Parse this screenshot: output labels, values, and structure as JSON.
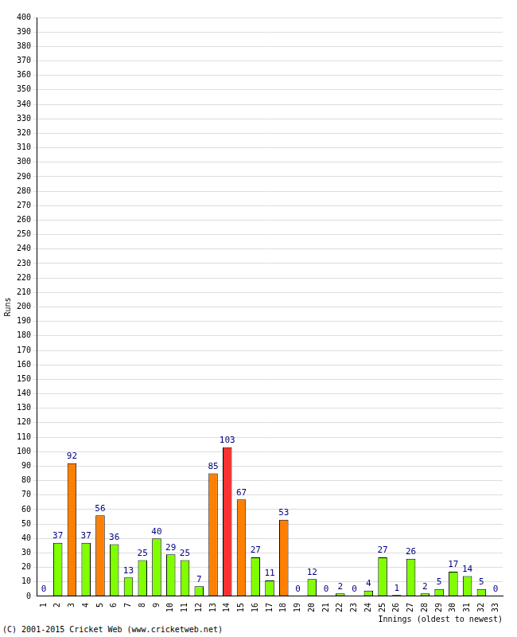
{
  "chart_data": {
    "type": "bar",
    "x_label": "Innings (oldest to newest)",
    "y_label": "Runs",
    "annotations": [
      "(C) 2001-2015 Cricket Web (www.cricketweb.net)"
    ],
    "categories": [
      "1",
      "2",
      "3",
      "4",
      "5",
      "6",
      "7",
      "8",
      "9",
      "10",
      "11",
      "12",
      "13",
      "14",
      "15",
      "16",
      "17",
      "18",
      "19",
      "20",
      "21",
      "22",
      "23",
      "24",
      "25",
      "26",
      "27",
      "28",
      "29",
      "30",
      "31",
      "32",
      "33"
    ],
    "values": [
      0,
      37,
      92,
      37,
      56,
      36,
      13,
      25,
      40,
      29,
      25,
      7,
      85,
      103,
      67,
      27,
      11,
      53,
      0,
      12,
      0,
      2,
      0,
      4,
      27,
      1,
      26,
      2,
      5,
      17,
      14,
      5,
      0
    ],
    "colors": [
      "#80ff00",
      "#80ff00",
      "#ff8000",
      "#80ff00",
      "#ff8000",
      "#80ff00",
      "#80ff00",
      "#80ff00",
      "#80ff00",
      "#80ff00",
      "#80ff00",
      "#80ff00",
      "#ff8000",
      "#ff3030",
      "#ff8000",
      "#80ff00",
      "#80ff00",
      "#ff8000",
      "#80ff00",
      "#80ff00",
      "#80ff00",
      "#80ff00",
      "#80ff00",
      "#80ff00",
      "#80ff00",
      "#80ff00",
      "#80ff00",
      "#80ff00",
      "#80ff00",
      "#80ff00",
      "#80ff00",
      "#80ff00",
      "#80ff00"
    ],
    "ylim": [
      0,
      400
    ],
    "yticks": [
      0,
      10,
      20,
      30,
      40,
      50,
      60,
      70,
      80,
      90,
      100,
      110,
      120,
      130,
      140,
      150,
      160,
      170,
      180,
      190,
      200,
      210,
      220,
      230,
      240,
      250,
      260,
      270,
      280,
      290,
      300,
      310,
      320,
      330,
      340,
      350,
      360,
      370,
      380,
      390,
      400
    ],
    "grid": true,
    "data_labels": true
  }
}
